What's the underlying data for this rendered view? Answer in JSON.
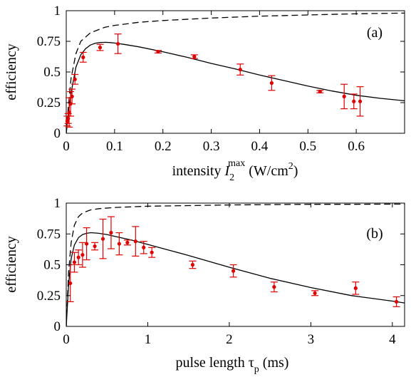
{
  "chart_data": [
    {
      "type": "scatter",
      "panel_label": "(a)",
      "xlabel_main": "intensity ",
      "xlabel_symbol": "I",
      "xlabel_sub": "2",
      "xlabel_sup": "max",
      "xlabel_unit_pre": " (W/cm",
      "xlabel_unit_sup": "2",
      "xlabel_unit_post": ")",
      "ylabel": "efficiency",
      "xlim": [
        0,
        0.7
      ],
      "ylim": [
        0,
        1
      ],
      "xticks": [
        0,
        0.1,
        0.2,
        0.3,
        0.4,
        0.5,
        0.6
      ],
      "xtick_labels": [
        "0",
        "0.1",
        "0.2",
        "0.3",
        "0.4",
        "0.5",
        "0.6"
      ],
      "yticks": [
        0,
        0.25,
        0.5,
        0.75,
        1
      ],
      "ytick_labels": [
        "0",
        "0.25",
        "0.5",
        "0.75",
        "1"
      ],
      "grid": false,
      "data_color": "#e00000",
      "measured": {
        "x": [
          0.002,
          0.004,
          0.006,
          0.009,
          0.012,
          0.018,
          0.035,
          0.07,
          0.107,
          0.19,
          0.265,
          0.36,
          0.425,
          0.525,
          0.575,
          0.595,
          0.608
        ],
        "y": [
          0.1,
          0.12,
          0.17,
          0.24,
          0.3,
          0.44,
          0.62,
          0.7,
          0.73,
          0.665,
          0.625,
          0.52,
          0.41,
          0.34,
          0.3,
          0.26,
          0.26
        ],
        "err": [
          0.04,
          0.04,
          0.12,
          0.1,
          0.06,
          0.04,
          0.04,
          0.025,
          0.08,
          0.01,
          0.015,
          0.045,
          0.06,
          0.01,
          0.1,
          0.06,
          0.12
        ]
      },
      "model_solid": {
        "x": [
          0,
          0.005,
          0.01,
          0.02,
          0.03,
          0.04,
          0.05,
          0.06,
          0.07,
          0.08,
          0.09,
          0.1,
          0.12,
          0.15,
          0.2,
          0.25,
          0.3,
          0.35,
          0.4,
          0.45,
          0.5,
          0.55,
          0.6,
          0.65,
          0.7
        ],
        "y": [
          0,
          0.18,
          0.33,
          0.54,
          0.64,
          0.69,
          0.72,
          0.735,
          0.74,
          0.742,
          0.74,
          0.736,
          0.725,
          0.705,
          0.665,
          0.62,
          0.57,
          0.525,
          0.475,
          0.43,
          0.385,
          0.345,
          0.31,
          0.285,
          0.265
        ]
      },
      "model_dashed": {
        "x": [
          0,
          0.005,
          0.01,
          0.02,
          0.03,
          0.05,
          0.08,
          0.1,
          0.15,
          0.2,
          0.3,
          0.4,
          0.5,
          0.6,
          0.7
        ],
        "y": [
          0,
          0.25,
          0.45,
          0.65,
          0.75,
          0.82,
          0.865,
          0.88,
          0.905,
          0.92,
          0.94,
          0.955,
          0.965,
          0.975,
          0.98
        ]
      }
    },
    {
      "type": "scatter",
      "panel_label": "(b)",
      "xlabel_main": "pulse length ",
      "xlabel_symbol": "τ",
      "xlabel_sub": "p",
      "xlabel_unit_post": " (ms)",
      "ylabel": "efficiency",
      "xlim": [
        0,
        4.15
      ],
      "ylim": [
        0,
        1
      ],
      "xticks": [
        0,
        1,
        2,
        3,
        4
      ],
      "xtick_labels": [
        "0",
        "1",
        "2",
        "3",
        "4"
      ],
      "yticks": [
        0,
        0.25,
        0.5,
        0.75,
        1
      ],
      "ytick_labels": [
        "0",
        "0.25",
        "0.5",
        "0.75",
        "1"
      ],
      "grid": false,
      "data_color": "#e00000",
      "measured": {
        "x": [
          0.05,
          0.1,
          0.15,
          0.2,
          0.25,
          0.35,
          0.45,
          0.55,
          0.65,
          0.75,
          0.85,
          0.95,
          1.05,
          1.55,
          2.05,
          2.55,
          3.05,
          3.55,
          4.05
        ],
        "y": [
          0.35,
          0.52,
          0.56,
          0.58,
          0.67,
          0.65,
          0.71,
          0.76,
          0.67,
          0.68,
          0.69,
          0.64,
          0.6,
          0.5,
          0.45,
          0.32,
          0.27,
          0.31,
          0.2
        ],
        "err": [
          0.15,
          0.08,
          0.06,
          0.1,
          0.13,
          0.03,
          0.16,
          0.13,
          0.09,
          0.02,
          0.12,
          0.05,
          0.04,
          0.03,
          0.05,
          0.04,
          0.02,
          0.05,
          0.04
        ]
      },
      "model_solid": {
        "x": [
          0,
          0.03,
          0.06,
          0.1,
          0.15,
          0.2,
          0.25,
          0.3,
          0.35,
          0.4,
          0.5,
          0.6,
          0.8,
          1.0,
          1.25,
          1.5,
          2.0,
          2.5,
          3.0,
          3.5,
          4.0,
          4.15
        ],
        "y": [
          0,
          0.35,
          0.55,
          0.66,
          0.72,
          0.745,
          0.755,
          0.76,
          0.758,
          0.755,
          0.745,
          0.73,
          0.7,
          0.665,
          0.62,
          0.575,
          0.48,
          0.39,
          0.315,
          0.25,
          0.205,
          0.19
        ]
      },
      "model_dashed": {
        "x": [
          0,
          0.03,
          0.06,
          0.1,
          0.15,
          0.2,
          0.3,
          0.4,
          0.6,
          0.8,
          1.0,
          1.5,
          2.0,
          2.5,
          3.0,
          3.5,
          4.0,
          4.15
        ],
        "y": [
          0,
          0.45,
          0.68,
          0.82,
          0.89,
          0.92,
          0.945,
          0.955,
          0.965,
          0.97,
          0.975,
          0.98,
          0.985,
          0.988,
          0.99,
          0.99,
          0.992,
          0.992
        ]
      }
    }
  ]
}
